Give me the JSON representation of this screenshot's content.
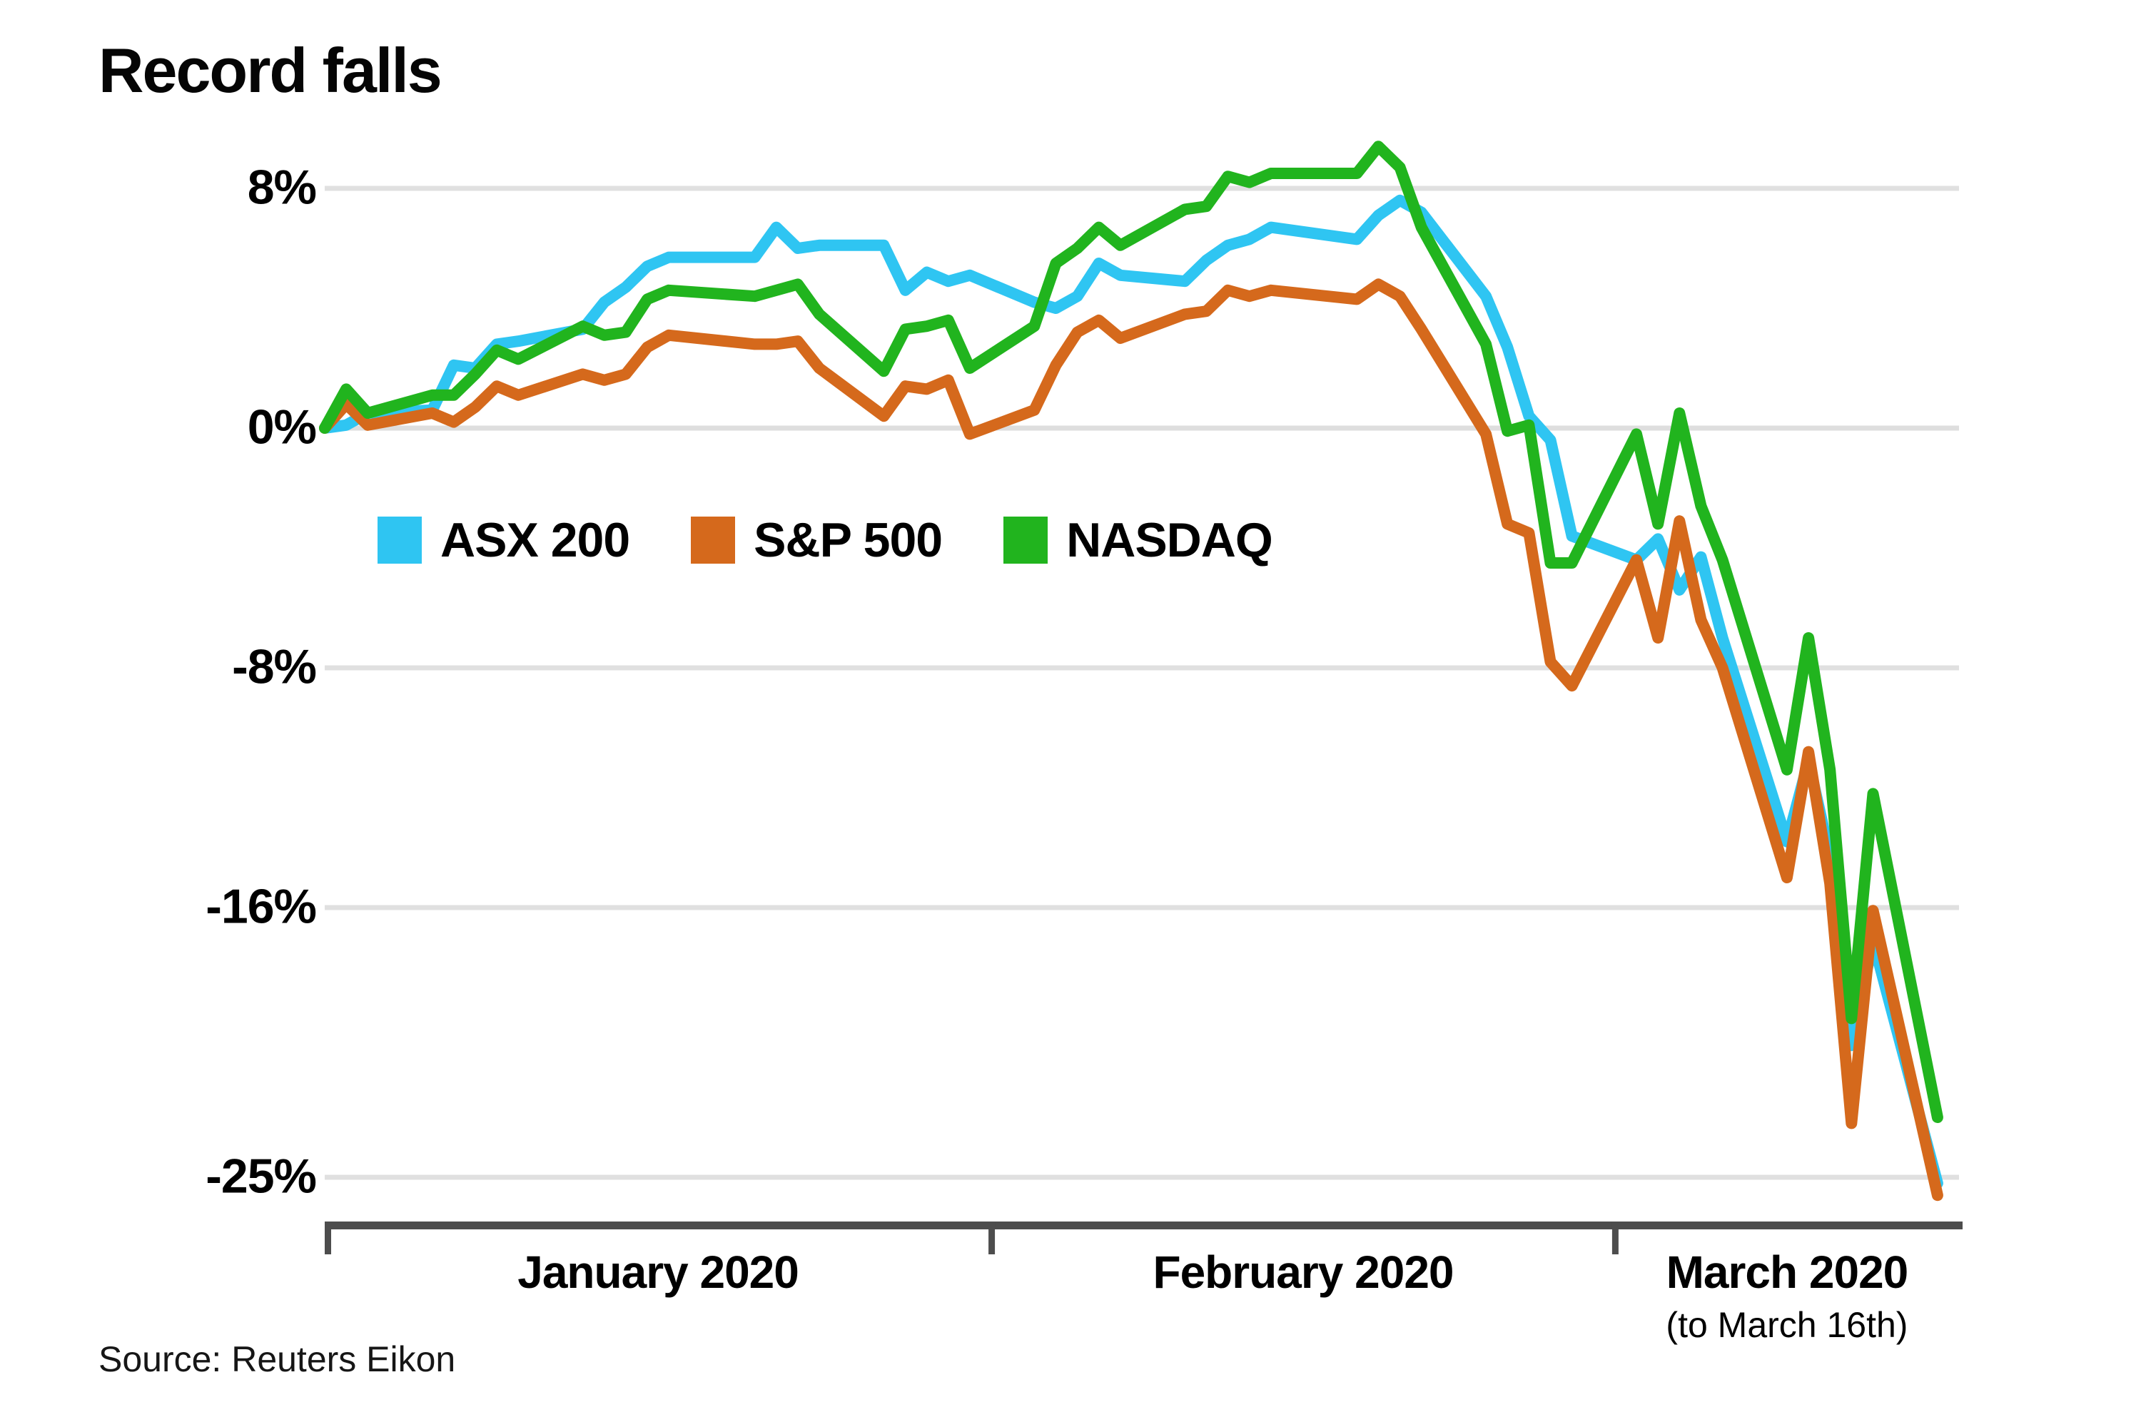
{
  "chart_data": {
    "type": "line",
    "title": "Record falls",
    "source": "Source: Reuters Eikon",
    "legend_position": "inside-top-left",
    "grid": true,
    "colors": {
      "gridline": "#e0e0e0",
      "zero_gridline": "#dedede",
      "axis_bar": "#4d4d4d",
      "text": "#050505"
    },
    "y_axis": {
      "unit": "%",
      "ylim": [
        -26.5,
        10
      ],
      "ticks": [
        {
          "label": "8%",
          "value": 8
        },
        {
          "label": "0%",
          "value": 0
        },
        {
          "label": "-8%",
          "value": -8
        },
        {
          "label": "-16%",
          "value": -16
        },
        {
          "label": "-25%",
          "value": -25
        }
      ]
    },
    "x_axis": {
      "end_day": 76,
      "ticks": [
        {
          "label": "January 2020",
          "sublabel": "",
          "day": 0
        },
        {
          "label": "February 2020",
          "sublabel": "",
          "day": 31
        },
        {
          "label": "March 2020",
          "sublabel": "(to March 16th)",
          "day": 60
        }
      ]
    },
    "dates": [
      "Jan 1",
      "Jan 2",
      "Jan 3",
      "Jan 6",
      "Jan 7",
      "Jan 8",
      "Jan 9",
      "Jan 10",
      "Jan 13",
      "Jan 14",
      "Jan 15",
      "Jan 16",
      "Jan 17",
      "Jan 21",
      "Jan 22",
      "Jan 23",
      "Jan 24",
      "Jan 27",
      "Jan 28",
      "Jan 29",
      "Jan 30",
      "Jan 31",
      "Feb 3",
      "Feb 4",
      "Feb 5",
      "Feb 6",
      "Feb 7",
      "Feb 10",
      "Feb 11",
      "Feb 12",
      "Feb 13",
      "Feb 14",
      "Feb 18",
      "Feb 19",
      "Feb 20",
      "Feb 21",
      "Feb 24",
      "Feb 25",
      "Feb 26",
      "Feb 27",
      "Feb 28",
      "Mar 2",
      "Mar 3",
      "Mar 4",
      "Mar 5",
      "Mar 6",
      "Mar 9",
      "Mar 10",
      "Mar 11",
      "Mar 12",
      "Mar 13",
      "Mar 16"
    ],
    "days": [
      0,
      1,
      2,
      5,
      6,
      7,
      8,
      9,
      12,
      13,
      14,
      15,
      16,
      20,
      21,
      22,
      23,
      26,
      27,
      28,
      29,
      30,
      33,
      34,
      35,
      36,
      37,
      40,
      41,
      42,
      43,
      44,
      48,
      49,
      50,
      51,
      54,
      55,
      56,
      57,
      58,
      61,
      62,
      63,
      64,
      65,
      68,
      69,
      70,
      71,
      72,
      75
    ],
    "series": [
      {
        "name": "ASX 200",
        "color": "#2fc5f2",
        "values": [
          0.0,
          0.1,
          0.5,
          0.6,
          2.1,
          2.0,
          2.8,
          2.9,
          3.3,
          4.2,
          4.7,
          5.4,
          5.7,
          5.7,
          6.7,
          6.0,
          6.1,
          6.1,
          4.6,
          5.2,
          4.9,
          5.1,
          4.2,
          4.0,
          4.4,
          5.5,
          5.1,
          4.9,
          5.6,
          6.1,
          6.3,
          6.7,
          6.3,
          7.1,
          7.6,
          7.2,
          4.4,
          2.7,
          0.4,
          -0.4,
          -3.6,
          -4.4,
          -3.7,
          -5.4,
          -4.3,
          -7.0,
          -13.8,
          -11.1,
          -14.3,
          -20.6,
          -17.1,
          -25.2
        ]
      },
      {
        "name": "S&P 500",
        "color": "#d5691c",
        "values": [
          0.0,
          0.8,
          0.1,
          0.5,
          0.2,
          0.7,
          1.4,
          1.1,
          1.8,
          1.6,
          1.8,
          2.7,
          3.1,
          2.8,
          2.8,
          2.9,
          2.0,
          0.4,
          1.4,
          1.3,
          1.6,
          -0.2,
          0.6,
          2.1,
          3.2,
          3.6,
          3.0,
          3.8,
          3.9,
          4.6,
          4.4,
          4.6,
          4.3,
          4.8,
          4.4,
          3.3,
          -0.2,
          -3.2,
          -3.5,
          -7.8,
          -8.6,
          -4.4,
          -7.0,
          -3.1,
          -6.4,
          -8.0,
          -15.0,
          -10.8,
          -15.2,
          -23.2,
          -16.1,
          -25.6
        ]
      },
      {
        "name": "NASDAQ",
        "color": "#21b41e",
        "values": [
          0.0,
          1.3,
          0.5,
          1.1,
          1.1,
          1.8,
          2.6,
          2.3,
          3.4,
          3.1,
          3.2,
          4.3,
          4.6,
          4.4,
          4.6,
          4.8,
          3.8,
          1.9,
          3.3,
          3.4,
          3.6,
          2.0,
          3.4,
          5.5,
          6.0,
          6.7,
          6.1,
          7.3,
          7.4,
          8.4,
          8.2,
          8.5,
          8.5,
          9.4,
          8.7,
          6.7,
          2.8,
          -0.1,
          0.1,
          -4.5,
          -4.5,
          -0.2,
          -3.2,
          0.5,
          -2.6,
          -4.4,
          -11.4,
          -7.0,
          -11.4,
          -19.7,
          -12.2,
          -23.0
        ]
      }
    ]
  }
}
